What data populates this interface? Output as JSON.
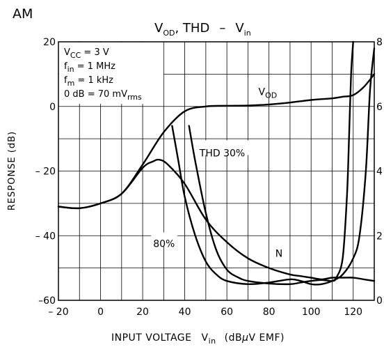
{
  "corner_label": "AM",
  "title": {
    "main_1": "V",
    "sub_1": "OD",
    "main_2": ", THD",
    "dash": "–",
    "main_3": "V",
    "sub_3": "in"
  },
  "conditions": [
    {
      "main": "V",
      "sub": "CC",
      "rest": " = 3 V"
    },
    {
      "main": "f",
      "sub": "in",
      "rest": " = 1 MHz"
    },
    {
      "main": "f",
      "sub": "m",
      "rest": " = 1 kHz"
    },
    {
      "main": "0 dB = 70 mV",
      "sub": "rms",
      "rest": ""
    }
  ],
  "y_axis_label": "RESPONSE   (dB)",
  "x_axis_label": {
    "part1": "INPUT VOLTAGE",
    "v_main": "V",
    "v_sub": "in",
    "part2": "(dB",
    "mu": "μ",
    "part3": "V EMF)"
  },
  "chart_data": {
    "type": "line",
    "xlim": [
      -20,
      130
    ],
    "ylim_left": [
      -60,
      20
    ],
    "ylim_right": [
      0,
      8
    ],
    "x_ticks": [
      -20,
      0,
      20,
      40,
      60,
      80,
      100,
      120
    ],
    "x_tick_labels": [
      "– 20",
      "0",
      "20",
      "40",
      "60",
      "80",
      "100",
      "120"
    ],
    "y_left_ticks": [
      -60,
      -40,
      -20,
      0,
      20
    ],
    "y_left_tick_labels": [
      "–60",
      "– 40",
      "– 20",
      "0",
      "20"
    ],
    "y_right_ticks": [
      0,
      2,
      4,
      6,
      8
    ],
    "y_right_tick_labels": [
      "0",
      "2",
      "4",
      "6",
      "8"
    ],
    "grid": true,
    "series": [
      {
        "name": "VOD",
        "label_main": "V",
        "label_sub": "OD",
        "axis": "left",
        "x": [
          -20,
          -10,
          0,
          10,
          20,
          30,
          40,
          50,
          60,
          70,
          80,
          90,
          100,
          110,
          115,
          120,
          125,
          130
        ],
        "y": [
          -31,
          -31.5,
          -30,
          -27,
          -18,
          -8,
          -1.5,
          0,
          0.2,
          0.3,
          0.6,
          1.2,
          2,
          2.5,
          3,
          3.5,
          6,
          10
        ]
      },
      {
        "name": "N",
        "label_main": "N",
        "axis": "left",
        "x": [
          -20,
          -10,
          0,
          10,
          20,
          25,
          28,
          32,
          40,
          50,
          60,
          70,
          80,
          90,
          95,
          100,
          105,
          110,
          115,
          120,
          125,
          130
        ],
        "y": [
          -31,
          -31.5,
          -30,
          -27,
          -19,
          -17,
          -16.5,
          -18,
          -24,
          -35,
          -42,
          -47,
          -50,
          -52,
          -52.5,
          -53,
          -53.5,
          -53,
          -53,
          -53,
          -53.5,
          -54
        ]
      },
      {
        "name": "THD 30%",
        "label_main": "THD  30%",
        "axis": "right",
        "x": [
          42,
          45,
          50,
          55,
          60,
          65,
          70,
          80,
          90,
          95,
          100,
          105,
          110,
          112,
          115,
          117,
          118,
          119,
          120
        ],
        "y": [
          5.4,
          4.3,
          2.7,
          1.55,
          0.95,
          0.72,
          0.6,
          0.52,
          0.5,
          0.55,
          0.6,
          0.63,
          0.6,
          0.7,
          1.3,
          3.2,
          5.0,
          7.0,
          8.0
        ]
      },
      {
        "name": "80%",
        "label_main": "80%",
        "axis": "right",
        "x": [
          34,
          37,
          40,
          45,
          50,
          55,
          60,
          70,
          80,
          90,
          95,
          100,
          105,
          110,
          115,
          120,
          123,
          126,
          128,
          130
        ],
        "y": [
          5.4,
          4.3,
          3.2,
          2.0,
          1.2,
          0.8,
          0.6,
          0.5,
          0.55,
          0.65,
          0.6,
          0.5,
          0.5,
          0.6,
          0.8,
          1.3,
          2.0,
          4.0,
          6.5,
          7.8
        ]
      }
    ]
  }
}
